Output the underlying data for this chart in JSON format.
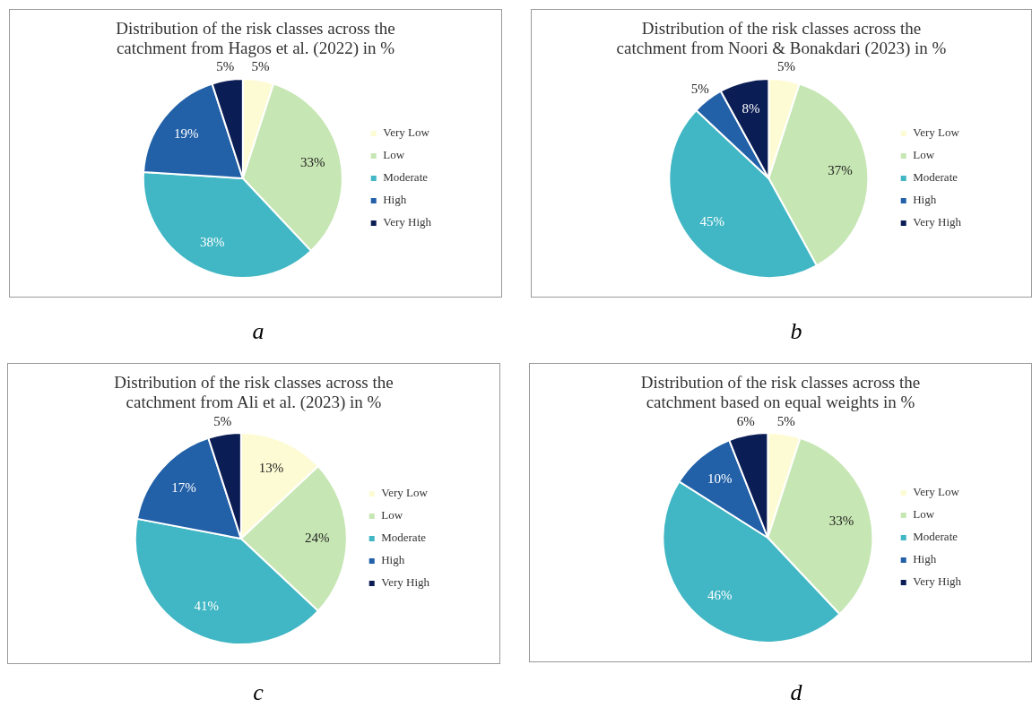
{
  "chart_data": [
    {
      "type": "pie",
      "title": "Distribution of the risk classes across the catchment from  Hagos et al. (2022) in %",
      "categories": [
        "Very Low",
        "Low",
        "Moderate",
        "High",
        "Very High"
      ],
      "values": [
        5,
        33,
        38,
        19,
        5
      ],
      "value_labels": [
        "5%",
        "33%",
        "38%",
        "19%",
        "5%"
      ],
      "colors": [
        "#fdfbd4",
        "#c6e6b3",
        "#41b6c4",
        "#2260a8",
        "#0b1d55"
      ],
      "legend": "right",
      "annotations": [
        "a"
      ]
    },
    {
      "type": "pie",
      "title": "Distribution of the risk classes across the catchment from  Noori & Bonakdari (2023) in %",
      "categories": [
        "Very Low",
        "Low",
        "Moderate",
        "High",
        "Very High"
      ],
      "values": [
        5,
        37,
        45,
        5,
        8
      ],
      "value_labels": [
        "5%",
        "37%",
        "45%",
        "5%",
        "8%"
      ],
      "colors": [
        "#fdfbd4",
        "#c6e6b3",
        "#41b6c4",
        "#2260a8",
        "#0b1d55"
      ],
      "legend": "right",
      "annotations": [
        "b"
      ]
    },
    {
      "type": "pie",
      "title": "Distribution of the risk classes across the catchment from  Ali et al. (2023) in %",
      "categories": [
        "Very Low",
        "Low",
        "Moderate",
        "High",
        "Very High"
      ],
      "values": [
        13,
        24,
        41,
        17,
        5
      ],
      "value_labels": [
        "13%",
        "24%",
        "41%",
        "17%",
        "5%"
      ],
      "colors": [
        "#fdfbd4",
        "#c6e6b3",
        "#41b6c4",
        "#2260a8",
        "#0b1d55"
      ],
      "legend": "right",
      "annotations": [
        "c"
      ]
    },
    {
      "type": "pie",
      "title": "Distribution of the risk classes across the catchment based on equal weights in %",
      "categories": [
        "Very Low",
        "Low",
        "Moderate",
        "High",
        "Very High"
      ],
      "values": [
        5,
        33,
        46,
        10,
        6
      ],
      "value_labels": [
        "5%",
        "33%",
        "46%",
        "10%",
        "6%"
      ],
      "colors": [
        "#fdfbd4",
        "#c6e6b3",
        "#41b6c4",
        "#2260a8",
        "#0b1d55"
      ],
      "legend": "right",
      "annotations": [
        "d"
      ]
    }
  ]
}
